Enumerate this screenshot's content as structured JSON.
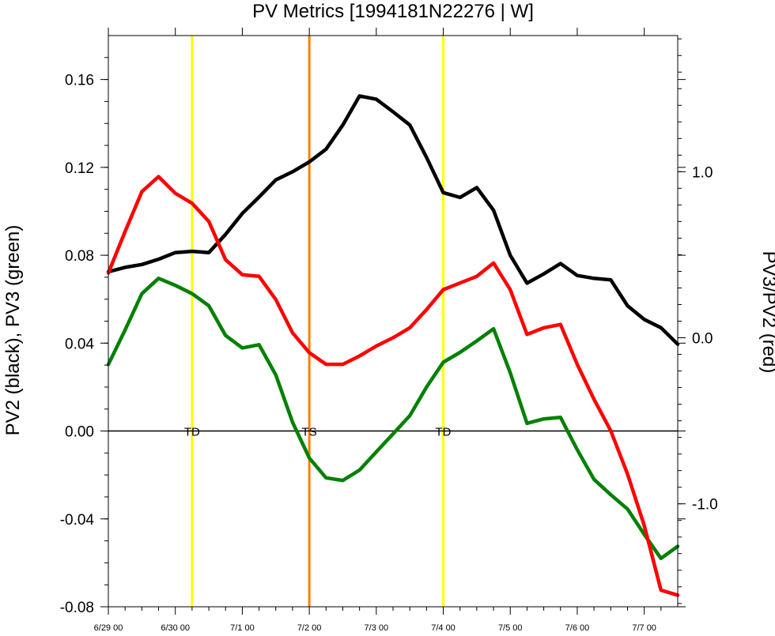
{
  "chart_data": {
    "type": "line",
    "title": "PV Metrics [1994181N22276 | W]",
    "left_ylabel": "PV2 (black), PV3 (green)",
    "right_ylabel": "PV3/PV2 (red)",
    "x_ticks": [
      "6/29 00",
      "6/30 00",
      "7/1 00",
      "7/2 00",
      "7/3 00",
      "7/4 00",
      "7/5 00",
      "7/6 00",
      "7/7 00"
    ],
    "x_tick_values": [
      0,
      24,
      48,
      72,
      96,
      120,
      144,
      168,
      192
    ],
    "xlim": [
      0,
      204
    ],
    "left_ylim": [
      -0.08,
      0.18
    ],
    "left_yticks": [
      "0.16",
      "0.12",
      "0.08",
      "0.04",
      "0.00",
      "-0.04",
      "-0.08"
    ],
    "left_ytick_values": [
      0.16,
      0.12,
      0.08,
      0.04,
      0.0,
      -0.04,
      -0.08
    ],
    "right_ylim": [
      -1.62,
      1.82
    ],
    "right_yticks": [
      "1.0",
      "0.0",
      "-1.0"
    ],
    "right_ytick_values": [
      1.0,
      0.0,
      -1.0
    ],
    "x": [
      0,
      6,
      12,
      18,
      24,
      30,
      36,
      42,
      48,
      54,
      60,
      66,
      72,
      78,
      84,
      90,
      96,
      102,
      108,
      114,
      120,
      126,
      132,
      138,
      144,
      150,
      156,
      162,
      168,
      174,
      180,
      186,
      192,
      198,
      204
    ],
    "series": [
      {
        "name": "PV2",
        "axis": "left",
        "color": "#000000",
        "values": [
          0.0725,
          0.0745,
          0.0758,
          0.0782,
          0.0812,
          0.0818,
          0.0812,
          0.0895,
          0.099,
          0.1065,
          0.1143,
          0.118,
          0.1225,
          0.1283,
          0.1393,
          0.1525,
          0.151,
          0.1453,
          0.1393,
          0.1245,
          0.1085,
          0.1063,
          0.1108,
          0.1005,
          0.08,
          0.0673,
          0.0715,
          0.0762,
          0.0708,
          0.0695,
          0.0688,
          0.057,
          0.0508,
          0.047,
          0.0395
        ]
      },
      {
        "name": "PV3",
        "axis": "left",
        "color": "#008000",
        "values": [
          0.0303,
          0.046,
          0.0625,
          0.0695,
          0.0663,
          0.0625,
          0.057,
          0.0435,
          0.0378,
          0.0393,
          0.0255,
          0.004,
          -0.0123,
          -0.0213,
          -0.0225,
          -0.0178,
          -0.0095,
          -0.0013,
          0.007,
          0.02,
          0.0313,
          0.0358,
          0.041,
          0.0465,
          0.0265,
          0.0035,
          0.0055,
          0.0062,
          -0.0085,
          -0.022,
          -0.029,
          -0.0355,
          -0.047,
          -0.058,
          -0.0525
        ]
      },
      {
        "name": "PV3/PV2",
        "axis": "right",
        "color": "#ff0000",
        "values": [
          0.39,
          0.64,
          0.88,
          0.97,
          0.87,
          0.81,
          0.7,
          0.47,
          0.38,
          0.37,
          0.23,
          0.03,
          -0.09,
          -0.16,
          -0.16,
          -0.11,
          -0.05,
          0.0,
          0.06,
          0.17,
          0.29,
          0.33,
          0.37,
          0.45,
          0.29,
          0.02,
          0.06,
          0.08,
          -0.16,
          -0.37,
          -0.56,
          -0.82,
          -1.13,
          -1.52,
          -1.55
        ]
      }
    ],
    "vertical_lines": [
      {
        "x": 30,
        "color": "#ffff00"
      },
      {
        "x": 72,
        "color": "#ff8000"
      },
      {
        "x": 120,
        "color": "#ffff00"
      }
    ],
    "annotations": [
      {
        "text": "TD",
        "x": 30
      },
      {
        "text": "TS",
        "x": 72
      },
      {
        "text": "TD",
        "x": 120
      }
    ],
    "zero_line": true,
    "grid": false
  }
}
